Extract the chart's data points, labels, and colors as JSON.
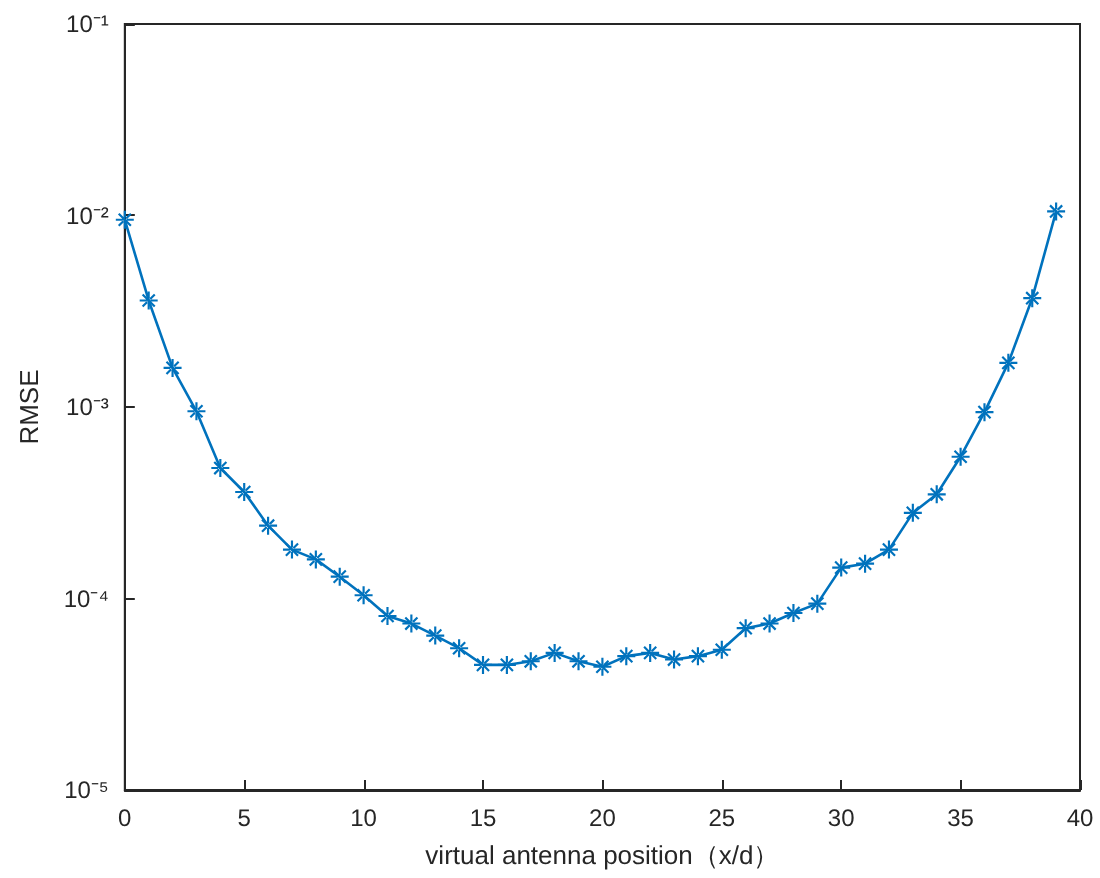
{
  "chart_data": {
    "type": "line",
    "xlabel": "virtual antenna position（x/d）",
    "ylabel": "RMSE",
    "x": [
      0,
      1,
      2,
      3,
      4,
      5,
      6,
      7,
      8,
      9,
      10,
      11,
      12,
      13,
      14,
      15,
      16,
      17,
      18,
      19,
      20,
      21,
      22,
      23,
      24,
      25,
      26,
      27,
      28,
      29,
      30,
      31,
      32,
      33,
      34,
      35,
      36,
      37,
      38,
      39
    ],
    "series": [
      {
        "color": "#0072bd",
        "values": [
          0.0095,
          0.0036,
          0.0016,
          0.00095,
          0.00048,
          0.00036,
          0.00024,
          0.00018,
          0.00016,
          0.00013,
          0.000104,
          8.1e-05,
          7.4e-05,
          6.4e-05,
          5.5e-05,
          4.5e-05,
          4.5e-05,
          4.7e-05,
          5.2e-05,
          4.7e-05,
          4.4e-05,
          5e-05,
          5.2e-05,
          4.8e-05,
          5e-05,
          5.4e-05,
          7e-05,
          7.4e-05,
          8.4e-05,
          9.4e-05,
          0.000145,
          0.000152,
          0.00018,
          0.00028,
          0.00035,
          0.00055,
          0.00094,
          0.0017,
          0.0037,
          0.0105
        ]
      }
    ],
    "xlim": [
      0,
      40
    ],
    "xticks": [
      0,
      5,
      10,
      15,
      20,
      25,
      30,
      35,
      40
    ],
    "ylim": [
      1e-05,
      0.1
    ],
    "yticks": [
      {
        "value": 1e-05,
        "label": "10⁻⁵"
      },
      {
        "value": 0.0001,
        "label": "10⁻⁴"
      },
      {
        "value": 0.001,
        "label": "10⁻³"
      },
      {
        "value": 0.01,
        "label": "10⁻²"
      },
      {
        "value": 0.1,
        "label": "10⁻¹"
      }
    ],
    "log": "y",
    "grid": false,
    "marker": "star",
    "line_style": "solid"
  }
}
